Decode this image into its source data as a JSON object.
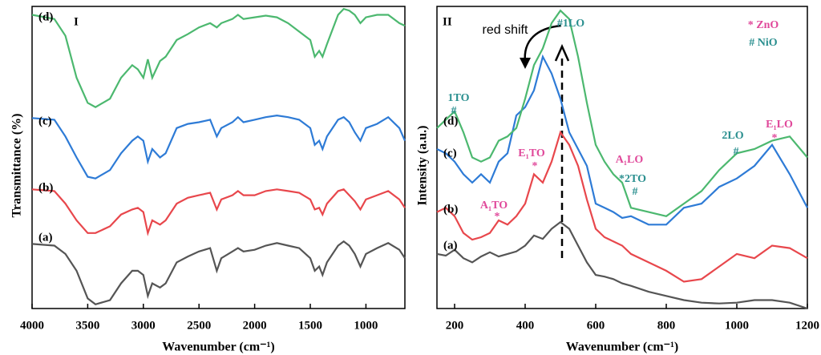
{
  "chart_data": [
    {
      "type": "line",
      "x_label": "Wavenumber (cm⁻¹)",
      "y_label": "Transmittance (%)",
      "panel_label": "I",
      "xlim": [
        4000,
        650
      ],
      "xticks": [
        4000,
        3500,
        3000,
        2500,
        2000,
        1500,
        1000
      ],
      "ylim": [
        0,
        360
      ],
      "x": [
        4000,
        3800,
        3700,
        3600,
        3500,
        3430,
        3300,
        3200,
        3100,
        3050,
        3000,
        2960,
        2920,
        2850,
        2800,
        2700,
        2600,
        2500,
        2400,
        2340,
        2300,
        2200,
        2150,
        2100,
        2000,
        1900,
        1800,
        1700,
        1600,
        1500,
        1460,
        1420,
        1390,
        1350,
        1250,
        1200,
        1150,
        1100,
        1050,
        1000,
        900,
        800,
        700,
        650
      ],
      "series": [
        {
          "name": "(a)",
          "color": "#555555",
          "values": [
            77,
            75,
            65,
            45,
            12,
            5,
            10,
            30,
            45,
            45,
            40,
            15,
            30,
            25,
            30,
            55,
            62,
            68,
            72,
            45,
            60,
            68,
            72,
            68,
            70,
            75,
            78,
            75,
            72,
            60,
            45,
            50,
            40,
            55,
            75,
            80,
            75,
            65,
            50,
            65,
            72,
            78,
            70,
            60
          ]
        },
        {
          "name": "(b)",
          "color": "#e8474c",
          "values": [
            142,
            140,
            125,
            105,
            90,
            90,
            98,
            112,
            118,
            120,
            115,
            90,
            105,
            100,
            105,
            125,
            132,
            135,
            138,
            118,
            130,
            135,
            140,
            135,
            135,
            140,
            142,
            140,
            138,
            130,
            118,
            120,
            112,
            125,
            140,
            142,
            135,
            128,
            118,
            130,
            135,
            140,
            130,
            120
          ]
        },
        {
          "name": "(c)",
          "color": "#2e7bd6",
          "values": [
            227,
            225,
            205,
            180,
            157,
            155,
            165,
            185,
            200,
            205,
            200,
            175,
            190,
            180,
            185,
            215,
            220,
            222,
            225,
            205,
            215,
            222,
            228,
            222,
            225,
            228,
            230,
            228,
            225,
            215,
            195,
            200,
            190,
            205,
            225,
            228,
            222,
            210,
            200,
            215,
            220,
            228,
            215,
            200
          ]
        },
        {
          "name": "(d)",
          "color": "#4cb86f",
          "values": [
            350,
            345,
            325,
            275,
            245,
            240,
            250,
            275,
            290,
            285,
            275,
            297,
            275,
            295,
            300,
            320,
            327,
            335,
            340,
            335,
            340,
            345,
            350,
            345,
            347,
            349,
            347,
            340,
            330,
            320,
            300,
            307,
            300,
            315,
            350,
            357,
            355,
            350,
            340,
            347,
            350,
            350,
            340,
            337
          ]
        }
      ]
    },
    {
      "type": "line",
      "x_label": "Wavenumber (cm⁻¹)",
      "y_label": "Intensity (a.u.)",
      "panel_label": "II",
      "xlim": [
        150,
        1200
      ],
      "xticks": [
        200,
        400,
        600,
        800,
        1000,
        1200
      ],
      "ylim": [
        0,
        360
      ],
      "x": [
        150,
        175,
        200,
        225,
        250,
        275,
        300,
        325,
        350,
        375,
        400,
        425,
        450,
        475,
        500,
        525,
        550,
        575,
        600,
        625,
        650,
        675,
        700,
        750,
        800,
        850,
        900,
        950,
        1000,
        1050,
        1100,
        1150,
        1200
      ],
      "series": [
        {
          "name": "(a)",
          "color": "#555555",
          "values": [
            65,
            63,
            70,
            60,
            55,
            62,
            67,
            62,
            65,
            68,
            75,
            87,
            83,
            95,
            103,
            95,
            75,
            55,
            40,
            38,
            35,
            30,
            27,
            20,
            15,
            10,
            7,
            6,
            7,
            10,
            10,
            7,
            0
          ]
        },
        {
          "name": "(b)",
          "color": "#e8474c",
          "values": [
            115,
            120,
            110,
            90,
            82,
            85,
            90,
            105,
            100,
            110,
            125,
            160,
            150,
            175,
            210,
            195,
            170,
            130,
            95,
            85,
            80,
            75,
            65,
            55,
            45,
            32,
            35,
            50,
            65,
            60,
            75,
            72,
            60
          ]
        },
        {
          "name": "(c)",
          "color": "#2e7bd6",
          "values": [
            190,
            185,
            175,
            160,
            150,
            160,
            150,
            175,
            185,
            230,
            240,
            260,
            300,
            280,
            250,
            210,
            190,
            170,
            125,
            120,
            115,
            108,
            110,
            100,
            100,
            120,
            125,
            145,
            155,
            170,
            195,
            160,
            120
          ]
        },
        {
          "name": "(d)",
          "color": "#4cb86f",
          "values": [
            215,
            225,
            235,
            210,
            180,
            175,
            180,
            200,
            205,
            215,
            250,
            290,
            310,
            340,
            355,
            345,
            300,
            245,
            195,
            175,
            160,
            150,
            120,
            115,
            110,
            125,
            140,
            165,
            185,
            190,
            200,
            205,
            180
          ]
        }
      ],
      "annotations": [
        "red shift",
        "#1LO",
        "* ZnO",
        "# NiO",
        "1TO",
        "#",
        "E₁TO",
        "*",
        "A₁TO",
        "*",
        "A₁LO",
        "*2TO",
        "#",
        "2LO",
        "#",
        "E₁LO",
        "*"
      ]
    }
  ]
}
